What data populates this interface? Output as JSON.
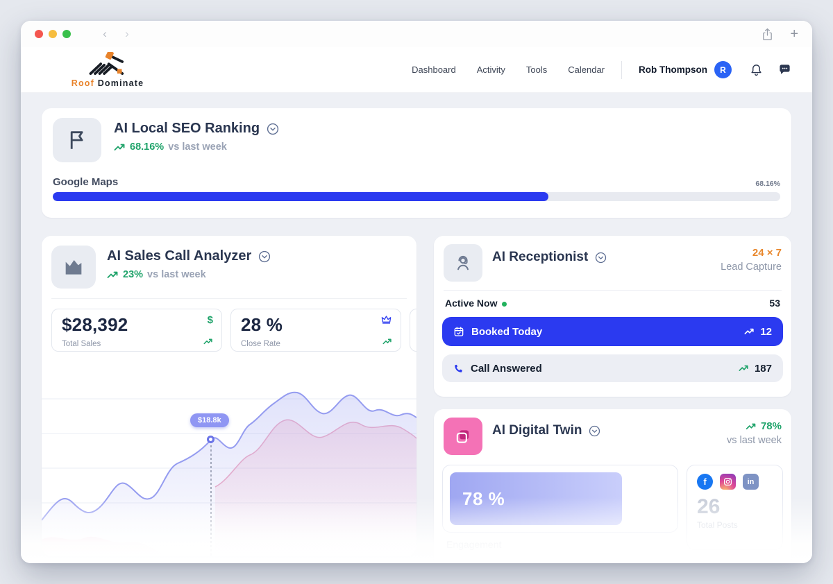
{
  "colors": {
    "primary_blue": "#2b3af0",
    "green": "#1fa36a",
    "orange": "#e8832b",
    "pink": "#f472b6"
  },
  "browser": {
    "back_glyph": "‹",
    "forward_glyph": "›",
    "plus_glyph": "+"
  },
  "header": {
    "logo": {
      "roof": "Roof",
      "dominate": "Dominate"
    },
    "nav": [
      {
        "label": "Dashboard"
      },
      {
        "label": "Activity"
      },
      {
        "label": "Tools"
      },
      {
        "label": "Calendar"
      }
    ],
    "user": {
      "name": "Rob Thompson",
      "initial": "R"
    }
  },
  "seo_card": {
    "title": "AI Local SEO Ranking",
    "trend_value": "68.16%",
    "trend_suffix": "vs last week",
    "row_label": "Google Maps",
    "row_value": "68.16%",
    "progress_pct": 68.16
  },
  "sales_card": {
    "title": "AI Sales Call Analyzer",
    "trend_value": "23%",
    "trend_suffix": "vs last week",
    "stats": [
      {
        "value": "$28,392",
        "label": "Total Sales",
        "icon": "dollar-icon",
        "icon_glyph": "$"
      },
      {
        "value": "28 %",
        "label": "Close Rate",
        "icon": "crown-icon"
      }
    ],
    "chart_tooltip": "$18.8k"
  },
  "receptionist_card": {
    "title": "AI Receptionist",
    "badge_line1": "24 × 7",
    "badge_line2": "Lead Capture",
    "rows": [
      {
        "label": "Active Now",
        "value": "53"
      },
      {
        "label": "Booked Today",
        "value": "12"
      },
      {
        "label": "Call Answered",
        "value": "187"
      }
    ]
  },
  "digital_twin_card": {
    "title": "AI Digital Twin",
    "trend_value": "78%",
    "trend_suffix": "vs last week",
    "engagement_value": "78 %",
    "engagement_pct": 78,
    "engagement_label": "Engagement",
    "posts_value": "26",
    "posts_label": "Total Posts",
    "social": {
      "facebook_glyph": "f",
      "linkedin_glyph": "in"
    }
  }
}
